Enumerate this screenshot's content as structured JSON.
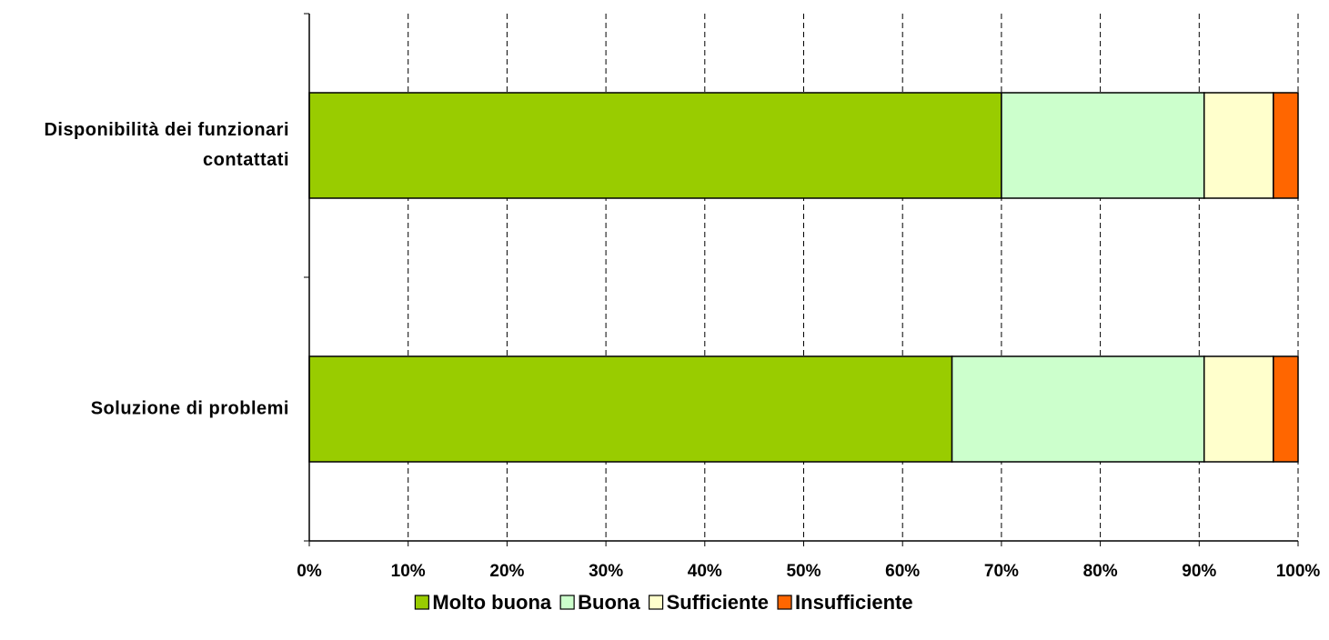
{
  "chart_data": {
    "type": "stacked-barh",
    "categories": [
      "Disponibilità dei funzionari contattati",
      "Soluzione di problemi"
    ],
    "series": [
      {
        "name": "Molto buona",
        "color": "#99cc00",
        "values": [
          70,
          65
        ]
      },
      {
        "name": "Buona",
        "color": "#ccffcc",
        "values": [
          20.5,
          25.5
        ]
      },
      {
        "name": "Sufficiente",
        "color": "#ffffcc",
        "values": [
          7,
          7
        ]
      },
      {
        "name": "Insufficiente",
        "color": "#ff6600",
        "values": [
          2.5,
          2.5
        ]
      }
    ],
    "xlim": [
      0,
      100
    ],
    "xticks": [
      {
        "value": 0,
        "label": "0%"
      },
      {
        "value": 10,
        "label": "10%"
      },
      {
        "value": 20,
        "label": "20%"
      },
      {
        "value": 30,
        "label": "30%"
      },
      {
        "value": 40,
        "label": "40%"
      },
      {
        "value": 50,
        "label": "50%"
      },
      {
        "value": 60,
        "label": "60%"
      },
      {
        "value": 70,
        "label": "70%"
      },
      {
        "value": 80,
        "label": "80%"
      },
      {
        "value": 90,
        "label": "90%"
      },
      {
        "value": 100,
        "label": "100%"
      }
    ],
    "grid": true,
    "legend": "bottom"
  }
}
